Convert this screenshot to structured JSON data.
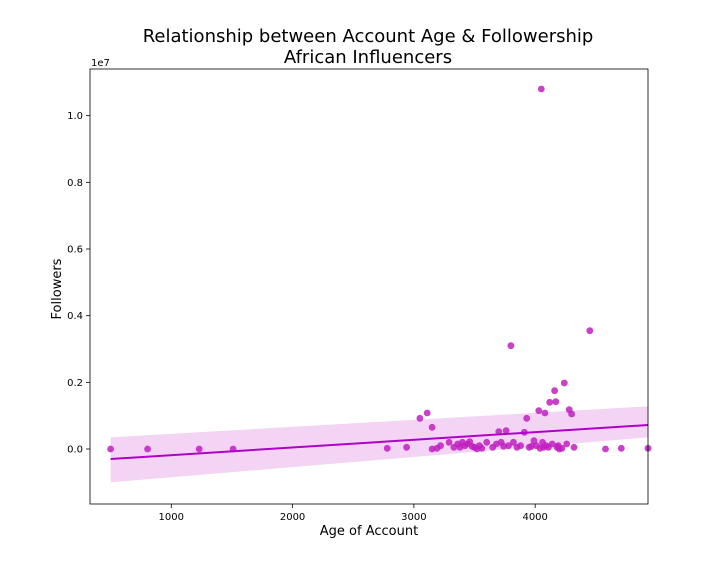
{
  "chart_data": {
    "type": "scatter",
    "title_lines": [
      "Relationship between Account Age & Followership",
      "African Influencers"
    ],
    "xlabel": "Age of Account",
    "ylabel": "Followers",
    "y_offset_label": "1e7",
    "xlim": [
      330,
      4930
    ],
    "ylim": [
      -1.65,
      11.4
    ],
    "y_units": "1e6 followers",
    "x_ticks": [
      1000,
      2000,
      3000,
      4000
    ],
    "x_tick_labels": [
      "1000",
      "2000",
      "3000",
      "4000"
    ],
    "y_ticks": [
      0,
      2,
      4,
      6,
      8,
      10
    ],
    "y_tick_labels": [
      "0.0",
      "0.2",
      "0.4",
      "0.6",
      "0.8",
      "1.0"
    ],
    "grid": false,
    "colors": {
      "points": "#BF1FBF",
      "line": "#B000C8",
      "band": "#F1C9F2"
    },
    "regression": {
      "x": [
        500,
        4930
      ],
      "y": [
        -0.3,
        0.72
      ],
      "ci_lower": [
        -1.0,
        0.35
      ],
      "ci_upper": [
        0.35,
        1.28
      ]
    },
    "points": [
      [
        500,
        0.0
      ],
      [
        805,
        0.0
      ],
      [
        1230,
        0.0
      ],
      [
        1510,
        0.0
      ],
      [
        2780,
        0.02
      ],
      [
        2940,
        0.05
      ],
      [
        3050,
        0.92
      ],
      [
        3110,
        1.08
      ],
      [
        3150,
        0.65
      ],
      [
        3150,
        0.0
      ],
      [
        3190,
        0.02
      ],
      [
        3220,
        0.1
      ],
      [
        3290,
        0.2
      ],
      [
        3330,
        0.05
      ],
      [
        3360,
        0.15
      ],
      [
        3380,
        0.05
      ],
      [
        3400,
        0.2
      ],
      [
        3420,
        0.1
      ],
      [
        3440,
        0.15
      ],
      [
        3460,
        0.22
      ],
      [
        3480,
        0.08
      ],
      [
        3500,
        0.05
      ],
      [
        3520,
        0.0
      ],
      [
        3540,
        0.1
      ],
      [
        3560,
        0.02
      ],
      [
        3600,
        0.2
      ],
      [
        3650,
        0.05
      ],
      [
        3680,
        0.15
      ],
      [
        3700,
        0.52
      ],
      [
        3720,
        0.2
      ],
      [
        3740,
        0.08
      ],
      [
        3760,
        0.55
      ],
      [
        3780,
        0.1
      ],
      [
        3800,
        3.1
      ],
      [
        3820,
        0.2
      ],
      [
        3850,
        0.05
      ],
      [
        3880,
        0.1
      ],
      [
        3910,
        0.5
      ],
      [
        3930,
        0.92
      ],
      [
        3950,
        0.05
      ],
      [
        3970,
        0.08
      ],
      [
        3990,
        0.25
      ],
      [
        4010,
        0.1
      ],
      [
        4030,
        1.15
      ],
      [
        4040,
        0.02
      ],
      [
        4050,
        10.8
      ],
      [
        4060,
        0.2
      ],
      [
        4070,
        0.05
      ],
      [
        4080,
        1.08
      ],
      [
        4090,
        0.1
      ],
      [
        4110,
        0.05
      ],
      [
        4120,
        1.4
      ],
      [
        4140,
        0.15
      ],
      [
        4160,
        1.75
      ],
      [
        4170,
        1.42
      ],
      [
        4180,
        0.05
      ],
      [
        4190,
        0.1
      ],
      [
        4200,
        0.0
      ],
      [
        4220,
        0.02
      ],
      [
        4240,
        1.98
      ],
      [
        4260,
        0.15
      ],
      [
        4280,
        1.18
      ],
      [
        4300,
        1.05
      ],
      [
        4320,
        0.05
      ],
      [
        4450,
        3.55
      ],
      [
        4580,
        0.0
      ],
      [
        4710,
        0.02
      ],
      [
        4930,
        0.02
      ]
    ]
  }
}
